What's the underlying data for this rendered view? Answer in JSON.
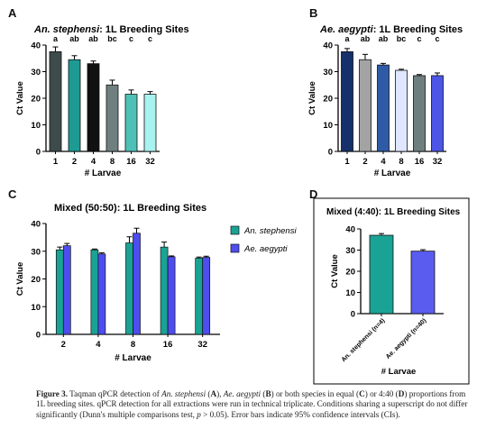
{
  "panels": [
    {
      "letter": "A"
    },
    {
      "letter": "B"
    },
    {
      "letter": "C"
    },
    {
      "letter": "D"
    }
  ],
  "caption": {
    "label": "Figure 3.",
    "t1": " Taqman qPCR detection of ",
    "sp1": "An. stephensi",
    "t2": " (",
    "A": "A",
    "t3": "), ",
    "sp2": "Ae. aegypti",
    "t4": " (",
    "B": "B",
    "t5": ") or both species in equal (",
    "C": "C",
    "t6": ") or 4:40 (",
    "D": "D",
    "t7": ") proportions from 1L breeding sites. qPCR detection for all extractions were run in technical triplicate. Conditions sharing a superscript do not differ significantly (Dunn's multiple comparisons test, ",
    "p": "p",
    "t8": " > 0.05). Error bars indicate 95% confidence intervals (CIs)."
  },
  "chart_data": [
    {
      "type": "bar",
      "title_italic": "An. stephensi",
      "title_rest": ": 1L Breeding Sites",
      "xlabel": "# Larvae",
      "ylabel": "Ct Value",
      "ylim": [
        0,
        40
      ],
      "yticks": [
        0,
        10,
        20,
        30,
        40
      ],
      "categories": [
        "1",
        "2",
        "4",
        "8",
        "16",
        "32"
      ],
      "values": [
        37.5,
        34.5,
        33,
        25,
        21.5,
        21.5
      ],
      "errors": [
        1.8,
        1.5,
        1,
        1.8,
        1.6,
        1
      ],
      "letters": [
        "a",
        "ab",
        "ab",
        "bc",
        "c",
        "c"
      ],
      "colors": [
        "#3d4b4b",
        "#1d9a93",
        "#111111",
        "#6f7f80",
        "#4ec0b6",
        "#a8f2f0"
      ]
    },
    {
      "type": "bar",
      "title_italic": "Ae. aegypti",
      "title_rest": ": 1L Breeding Sites",
      "xlabel": "# Larvae",
      "ylabel": "Ct Value",
      "ylim": [
        0,
        40
      ],
      "yticks": [
        0,
        10,
        20,
        30,
        40
      ],
      "categories": [
        "1",
        "2",
        "4",
        "8",
        "16",
        "32"
      ],
      "values": [
        37.5,
        34.5,
        32.5,
        30.5,
        28.5,
        28.5
      ],
      "errors": [
        1.2,
        2,
        0.6,
        0.4,
        0.4,
        1
      ],
      "letters": [
        "a",
        "ab",
        "ab",
        "bc",
        "c",
        "c"
      ],
      "colors": [
        "#16306b",
        "#a3a3a3",
        "#2f5aa6",
        "#dfe6ff",
        "#6f7f80",
        "#4d55e6"
      ]
    },
    {
      "type": "bar",
      "title": "Mixed (50:50): 1L Breeding Sites",
      "xlabel": "# Larvae",
      "ylabel": "Ct Value",
      "ylim": [
        0,
        40
      ],
      "yticks": [
        0,
        10,
        20,
        30,
        40
      ],
      "categories": [
        "2",
        "4",
        "8",
        "16",
        "32"
      ],
      "series": [
        {
          "name": "An. stephensi",
          "color": "#1aa394",
          "values": [
            30.5,
            30.5,
            33,
            31.5,
            27.5
          ],
          "errors": [
            1,
            0.3,
            2.2,
            1.8,
            0.4
          ]
        },
        {
          "name": "Ae. aegypti",
          "color": "#4d4df0",
          "values": [
            32,
            29,
            36.5,
            28,
            27.8
          ],
          "errors": [
            0.8,
            0.4,
            1.8,
            0.3,
            0.4
          ]
        }
      ],
      "legend": "right"
    },
    {
      "type": "bar",
      "title": "Mixed (4:40): 1L Breeding Sites",
      "xlabel": "# Larvae",
      "ylabel": "Ct Value",
      "ylim": [
        0,
        40
      ],
      "yticks": [
        0,
        10,
        20,
        30,
        40
      ],
      "categories": [
        "An. stephensi (n=4)",
        "Ae. aegypti (n=40)"
      ],
      "values": [
        37,
        29.5
      ],
      "errors": [
        0.8,
        0.7
      ],
      "colors": [
        "#1aa394",
        "#5a5cf0"
      ]
    }
  ]
}
